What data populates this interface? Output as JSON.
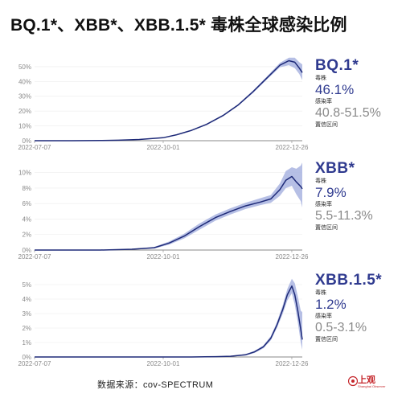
{
  "title": "BQ.1*、XBB*、XBB.1.5* 毒株全球感染比例",
  "source": "数据来源：cov-SPECTRUM",
  "logo": {
    "text": "上观",
    "subtext": "Shanghai Observer",
    "color": "#c5262b"
  },
  "colors": {
    "line": "#1e2a78",
    "band": "#a9b4e0",
    "accent_text": "#2f3a8f",
    "ci_text": "#8a8a8a"
  },
  "chart_data": [
    {
      "type": "area",
      "series_name": "BQ.1*",
      "label_strain": "毒株",
      "value_text": "46.1%",
      "label_rate": "感染率",
      "ci_text": "40.8-51.5%",
      "label_ci": "置信区间",
      "x_ticks": [
        "2022-07-07",
        "2022-10-01",
        "2022-12-26"
      ],
      "y_ticks": [
        "0%",
        "10%",
        "20%",
        "30%",
        "40%",
        "50%"
      ],
      "xlim": [
        "2022-07-07",
        "2023-01-02"
      ],
      "ylim": [
        0,
        57
      ],
      "x": [
        "2022-07-07",
        "2022-08-01",
        "2022-08-20",
        "2022-09-01",
        "2022-09-15",
        "2022-10-01",
        "2022-10-10",
        "2022-10-20",
        "2022-10-30",
        "2022-11-10",
        "2022-11-20",
        "2022-11-30",
        "2022-12-10",
        "2022-12-18",
        "2022-12-24",
        "2022-12-28",
        "2022-12-31",
        "2023-01-02"
      ],
      "values": [
        0,
        0,
        0.1,
        0.3,
        0.8,
        2,
        4,
        7,
        11,
        17,
        24,
        33,
        43,
        51,
        54,
        53,
        49,
        46
      ],
      "lower": [
        0,
        0,
        0.1,
        0.3,
        0.7,
        1.9,
        3.8,
        6.7,
        10.6,
        16.5,
        23.4,
        32.2,
        42,
        49.5,
        51,
        49,
        45,
        41
      ],
      "upper": [
        0,
        0,
        0.1,
        0.3,
        0.9,
        2.1,
        4.2,
        7.3,
        11.4,
        17.5,
        24.6,
        33.8,
        44,
        52.5,
        56,
        56,
        53,
        51.5
      ]
    },
    {
      "type": "area",
      "series_name": "XBB*",
      "label_strain": "毒株",
      "value_text": "7.9%",
      "label_rate": "感染率",
      "ci_text": "5.5-11.3%",
      "label_ci": "置信区间",
      "x_ticks": [
        "2022-07-07",
        "2022-10-01",
        "2022-12-26"
      ],
      "y_ticks": [
        "0%",
        "2%",
        "4%",
        "6%",
        "8%",
        "10%"
      ],
      "xlim": [
        "2022-07-07",
        "2023-01-02"
      ],
      "ylim": [
        0,
        10.8
      ],
      "x": [
        "2022-07-07",
        "2022-08-20",
        "2022-09-10",
        "2022-09-25",
        "2022-10-05",
        "2022-10-15",
        "2022-10-25",
        "2022-11-05",
        "2022-11-15",
        "2022-11-25",
        "2022-12-05",
        "2022-12-12",
        "2022-12-18",
        "2022-12-22",
        "2022-12-26",
        "2022-12-29",
        "2023-01-01",
        "2023-01-02"
      ],
      "values": [
        0,
        0,
        0.1,
        0.3,
        0.9,
        1.8,
        3.0,
        4.2,
        5.0,
        5.7,
        6.2,
        6.6,
        7.8,
        9.0,
        9.5,
        8.8,
        8.2,
        7.9
      ],
      "lower": [
        0,
        0,
        0.05,
        0.2,
        0.7,
        1.5,
        2.6,
        3.8,
        4.6,
        5.3,
        5.8,
        6.1,
        7.0,
        8.0,
        8.3,
        7.2,
        6.3,
        5.5
      ],
      "upper": [
        0,
        0,
        0.15,
        0.4,
        1.1,
        2.1,
        3.4,
        4.6,
        5.4,
        6.1,
        6.7,
        7.1,
        8.6,
        10.2,
        10.7,
        10.5,
        10.9,
        11.3
      ]
    },
    {
      "type": "area",
      "series_name": "XBB.1.5*",
      "label_strain": "毒株",
      "value_text": "1.2%",
      "label_rate": "感染率",
      "ci_text": "0.5-3.1%",
      "label_ci": "置信区间",
      "x_ticks": [
        "2022-07-07",
        "2022-10-01",
        "2022-12-26"
      ],
      "y_ticks": [
        "0%",
        "1%",
        "2%",
        "3%",
        "4%",
        "5%"
      ],
      "xlim": [
        "2022-07-07",
        "2023-01-02"
      ],
      "ylim": [
        0,
        5.5
      ],
      "x": [
        "2022-07-07",
        "2022-10-20",
        "2022-11-05",
        "2022-11-15",
        "2022-11-25",
        "2022-12-01",
        "2022-12-07",
        "2022-12-12",
        "2022-12-16",
        "2022-12-20",
        "2022-12-23",
        "2022-12-26",
        "2022-12-28",
        "2022-12-30",
        "2023-01-01",
        "2023-01-02"
      ],
      "values": [
        0,
        0,
        0.02,
        0.05,
        0.15,
        0.35,
        0.7,
        1.3,
        2.2,
        3.3,
        4.3,
        4.9,
        4.3,
        3.2,
        1.9,
        1.2
      ],
      "lower": [
        0,
        0,
        0.01,
        0.03,
        0.1,
        0.28,
        0.6,
        1.15,
        2.0,
        3.0,
        3.9,
        4.4,
        3.6,
        2.4,
        1.0,
        0.5
      ],
      "upper": [
        0,
        0,
        0.03,
        0.07,
        0.2,
        0.42,
        0.8,
        1.45,
        2.4,
        3.6,
        4.7,
        5.4,
        5.1,
        4.2,
        3.2,
        3.1
      ]
    }
  ]
}
